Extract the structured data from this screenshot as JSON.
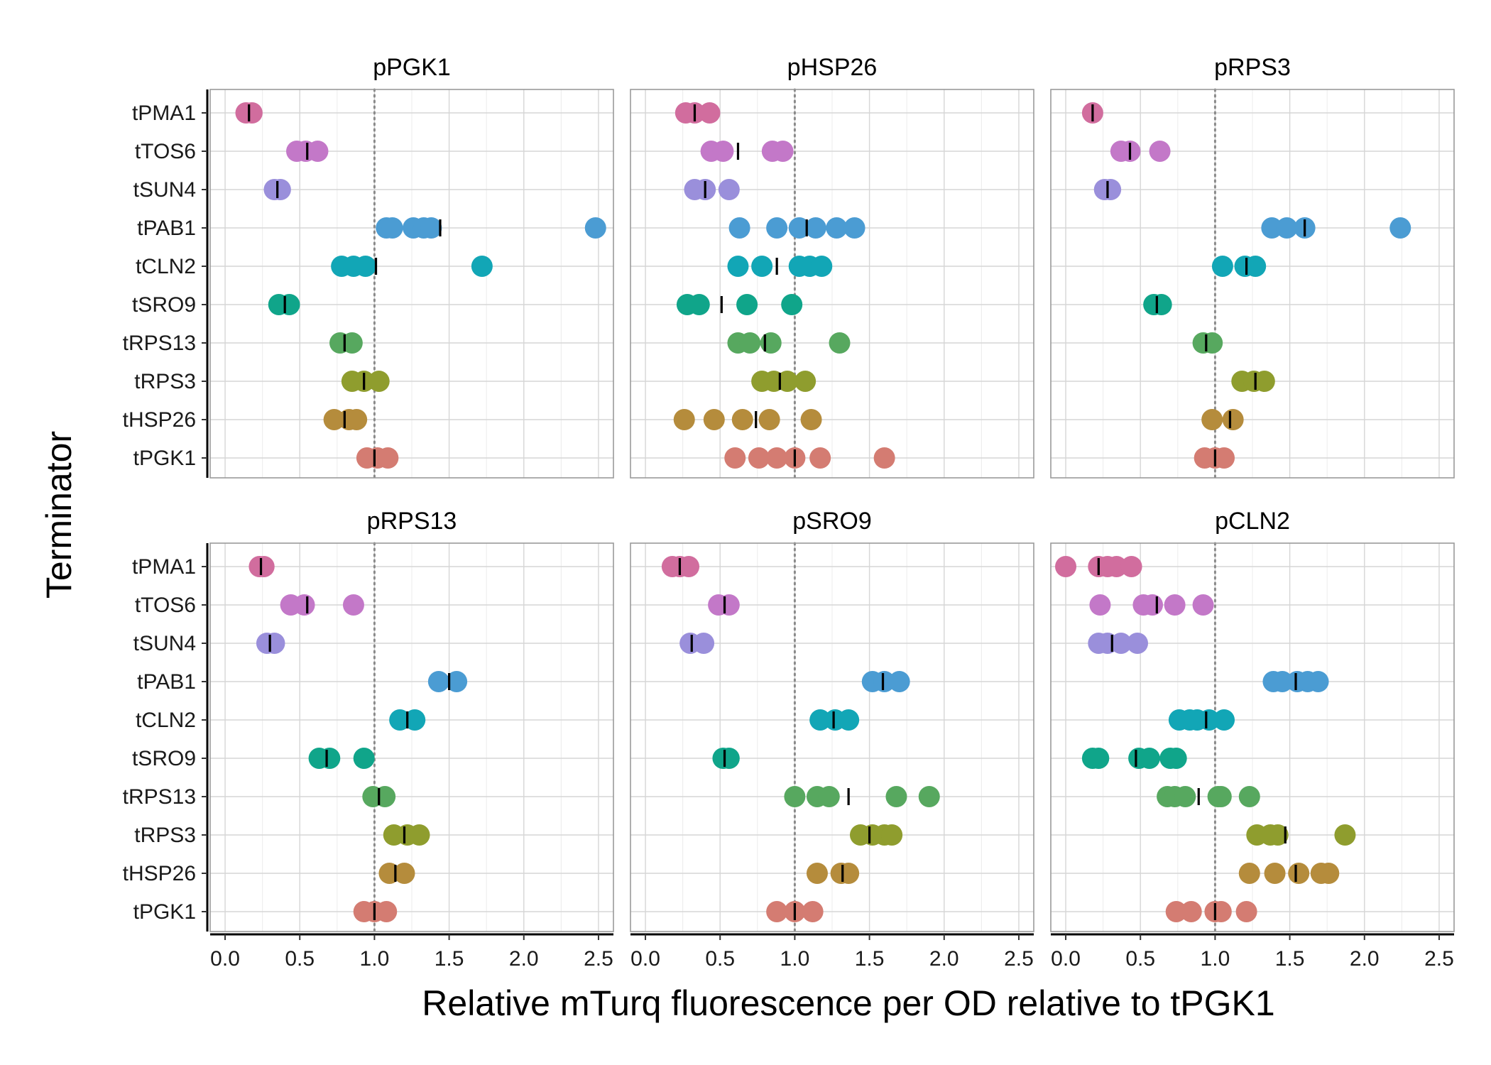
{
  "chart_data": {
    "type": "scatter",
    "xlabel": "Relative mTurq fluorescence per OD relative to tPGK1",
    "ylabel": "Terminator",
    "xlim": [
      -0.1,
      2.6
    ],
    "xticks": [
      "0.0",
      "0.5",
      "1.0",
      "1.5",
      "2.0",
      "2.5"
    ],
    "reference_line_x": 1.0,
    "grid": true,
    "categories": [
      "tPMA1",
      "tTOS6",
      "tSUN4",
      "tPAB1",
      "tCLN2",
      "tSRO9",
      "tRPS13",
      "tRPS3",
      "tHSP26",
      "tPGK1"
    ],
    "colors": {
      "tPMA1": "#d16d9e",
      "tTOS6": "#c378c8",
      "tSUN4": "#9a8fdb",
      "tPAB1": "#4b9cd3",
      "tCLN2": "#12a6b6",
      "tSRO9": "#10a58a",
      "tRPS13": "#57a85f",
      "tRPS3": "#8f9d2e",
      "tHSP26": "#b58c3c",
      "tPGK1": "#d47c72"
    },
    "panels": [
      {
        "title": "pPGK1",
        "groups": [
          {
            "category": "tPMA1",
            "points": [
              0.14,
              0.18
            ],
            "median": 0.16
          },
          {
            "category": "tTOS6",
            "points": [
              0.48,
              0.54,
              0.62
            ],
            "median": 0.55
          },
          {
            "category": "tSUN4",
            "points": [
              0.33,
              0.37
            ],
            "median": 0.35
          },
          {
            "category": "tPAB1",
            "points": [
              1.08,
              1.12,
              1.26,
              1.33,
              1.38,
              2.48
            ],
            "median": 1.44
          },
          {
            "category": "tCLN2",
            "points": [
              0.78,
              0.86,
              0.94,
              1.72
            ],
            "median": 1.01
          },
          {
            "category": "tSRO9",
            "points": [
              0.36,
              0.43
            ],
            "median": 0.4
          },
          {
            "category": "tRPS13",
            "points": [
              0.77,
              0.85
            ],
            "median": 0.8
          },
          {
            "category": "tRPS3",
            "points": [
              0.85,
              0.93,
              1.03
            ],
            "median": 0.93
          },
          {
            "category": "tHSP26",
            "points": [
              0.73,
              0.83,
              0.88
            ],
            "median": 0.8
          },
          {
            "category": "tPGK1",
            "points": [
              0.95,
              1.02,
              1.09
            ],
            "median": 1.0
          }
        ]
      },
      {
        "title": "pHSP26",
        "groups": [
          {
            "category": "tPMA1",
            "points": [
              0.27,
              0.33,
              0.43
            ],
            "median": 0.33
          },
          {
            "category": "tTOS6",
            "points": [
              0.44,
              0.52,
              0.85,
              0.92
            ],
            "median": 0.62
          },
          {
            "category": "tSUN4",
            "points": [
              0.33,
              0.4,
              0.56
            ],
            "median": 0.4
          },
          {
            "category": "tPAB1",
            "points": [
              0.63,
              0.88,
              1.03,
              1.14,
              1.28,
              1.4
            ],
            "median": 1.08
          },
          {
            "category": "tCLN2",
            "points": [
              0.62,
              0.78,
              1.03,
              1.1,
              1.18
            ],
            "median": 0.88
          },
          {
            "category": "tSRO9",
            "points": [
              0.28,
              0.36,
              0.68,
              0.98
            ],
            "median": 0.51
          },
          {
            "category": "tRPS13",
            "points": [
              0.62,
              0.7,
              0.84,
              1.3
            ],
            "median": 0.8
          },
          {
            "category": "tRPS3",
            "points": [
              0.78,
              0.86,
              0.95,
              1.07
            ],
            "median": 0.9
          },
          {
            "category": "tHSP26",
            "points": [
              0.26,
              0.46,
              0.65,
              0.83,
              1.11
            ],
            "median": 0.74
          },
          {
            "category": "tPGK1",
            "points": [
              0.6,
              0.76,
              0.88,
              1.0,
              1.17,
              1.6
            ],
            "median": 1.0
          }
        ]
      },
      {
        "title": "pRPS3",
        "groups": [
          {
            "category": "tPMA1",
            "points": [
              0.18
            ],
            "median": 0.18
          },
          {
            "category": "tTOS6",
            "points": [
              0.37,
              0.43,
              0.63
            ],
            "median": 0.43
          },
          {
            "category": "tSUN4",
            "points": [
              0.26,
              0.3
            ],
            "median": 0.28
          },
          {
            "category": "tPAB1",
            "points": [
              1.38,
              1.48,
              1.6,
              2.24
            ],
            "median": 1.6
          },
          {
            "category": "tCLN2",
            "points": [
              1.05,
              1.2,
              1.27
            ],
            "median": 1.21
          },
          {
            "category": "tSRO9",
            "points": [
              0.59,
              0.64
            ],
            "median": 0.61
          },
          {
            "category": "tRPS13",
            "points": [
              0.92,
              0.98
            ],
            "median": 0.94
          },
          {
            "category": "tRPS3",
            "points": [
              1.18,
              1.26,
              1.33
            ],
            "median": 1.27
          },
          {
            "category": "tHSP26",
            "points": [
              0.98,
              1.12
            ],
            "median": 1.1
          },
          {
            "category": "tPGK1",
            "points": [
              0.93,
              1.0,
              1.06
            ],
            "median": 1.0
          }
        ]
      },
      {
        "title": "pRPS13",
        "groups": [
          {
            "category": "tPMA1",
            "points": [
              0.23,
              0.26
            ],
            "median": 0.24
          },
          {
            "category": "tTOS6",
            "points": [
              0.44,
              0.53,
              0.86
            ],
            "median": 0.55
          },
          {
            "category": "tSUN4",
            "points": [
              0.28,
              0.33
            ],
            "median": 0.3
          },
          {
            "category": "tPAB1",
            "points": [
              1.43,
              1.55
            ],
            "median": 1.5
          },
          {
            "category": "tCLN2",
            "points": [
              1.17,
              1.27
            ],
            "median": 1.22
          },
          {
            "category": "tSRO9",
            "points": [
              0.63,
              0.7,
              0.93
            ],
            "median": 0.68
          },
          {
            "category": "tRPS13",
            "points": [
              0.99,
              1.07
            ],
            "median": 1.03
          },
          {
            "category": "tRPS3",
            "points": [
              1.13,
              1.22,
              1.3
            ],
            "median": 1.2
          },
          {
            "category": "tHSP26",
            "points": [
              1.1,
              1.2
            ],
            "median": 1.14
          },
          {
            "category": "tPGK1",
            "points": [
              0.93,
              1.0,
              1.08
            ],
            "median": 1.0
          }
        ]
      },
      {
        "title": "pSRO9",
        "groups": [
          {
            "category": "tPMA1",
            "points": [
              0.18,
              0.23,
              0.29
            ],
            "median": 0.23
          },
          {
            "category": "tTOS6",
            "points": [
              0.49,
              0.56
            ],
            "median": 0.53
          },
          {
            "category": "tSUN4",
            "points": [
              0.3,
              0.39
            ],
            "median": 0.31
          },
          {
            "category": "tPAB1",
            "points": [
              1.52,
              1.6,
              1.7
            ],
            "median": 1.59
          },
          {
            "category": "tCLN2",
            "points": [
              1.17,
              1.27,
              1.36
            ],
            "median": 1.26
          },
          {
            "category": "tSRO9",
            "points": [
              0.52,
              0.56
            ],
            "median": 0.53
          },
          {
            "category": "tRPS13",
            "points": [
              1.0,
              1.15,
              1.23,
              1.68,
              1.9
            ],
            "median": 1.36
          },
          {
            "category": "tRPS3",
            "points": [
              1.44,
              1.52,
              1.6,
              1.65
            ],
            "median": 1.5
          },
          {
            "category": "tHSP26",
            "points": [
              1.15,
              1.31,
              1.36
            ],
            "median": 1.32
          },
          {
            "category": "tPGK1",
            "points": [
              0.88,
              1.0,
              1.12
            ],
            "median": 1.0
          }
        ]
      },
      {
        "title": "pCLN2",
        "groups": [
          {
            "category": "tPMA1",
            "points": [
              0.0,
              0.22,
              0.28,
              0.34,
              0.44
            ],
            "median": 0.22
          },
          {
            "category": "tTOS6",
            "points": [
              0.23,
              0.52,
              0.58,
              0.73,
              0.92
            ],
            "median": 0.61
          },
          {
            "category": "tSUN4",
            "points": [
              0.22,
              0.28,
              0.37,
              0.48
            ],
            "median": 0.31
          },
          {
            "category": "tPAB1",
            "points": [
              1.39,
              1.45,
              1.55,
              1.62,
              1.69
            ],
            "median": 1.54
          },
          {
            "category": "tCLN2",
            "points": [
              0.76,
              0.83,
              0.88,
              0.96,
              1.06
            ],
            "median": 0.94
          },
          {
            "category": "tSRO9",
            "points": [
              0.18,
              0.22,
              0.49,
              0.56,
              0.7,
              0.74
            ],
            "median": 0.47
          },
          {
            "category": "tRPS13",
            "points": [
              0.68,
              0.73,
              0.8,
              1.02,
              1.04,
              1.23
            ],
            "median": 0.89
          },
          {
            "category": "tRPS3",
            "points": [
              1.28,
              1.37,
              1.42,
              1.87
            ],
            "median": 1.47
          },
          {
            "category": "tHSP26",
            "points": [
              1.23,
              1.4,
              1.56,
              1.71,
              1.76
            ],
            "median": 1.54
          },
          {
            "category": "tPGK1",
            "points": [
              0.74,
              0.84,
              1.0,
              1.04,
              1.21
            ],
            "median": 1.0
          }
        ]
      }
    ]
  }
}
